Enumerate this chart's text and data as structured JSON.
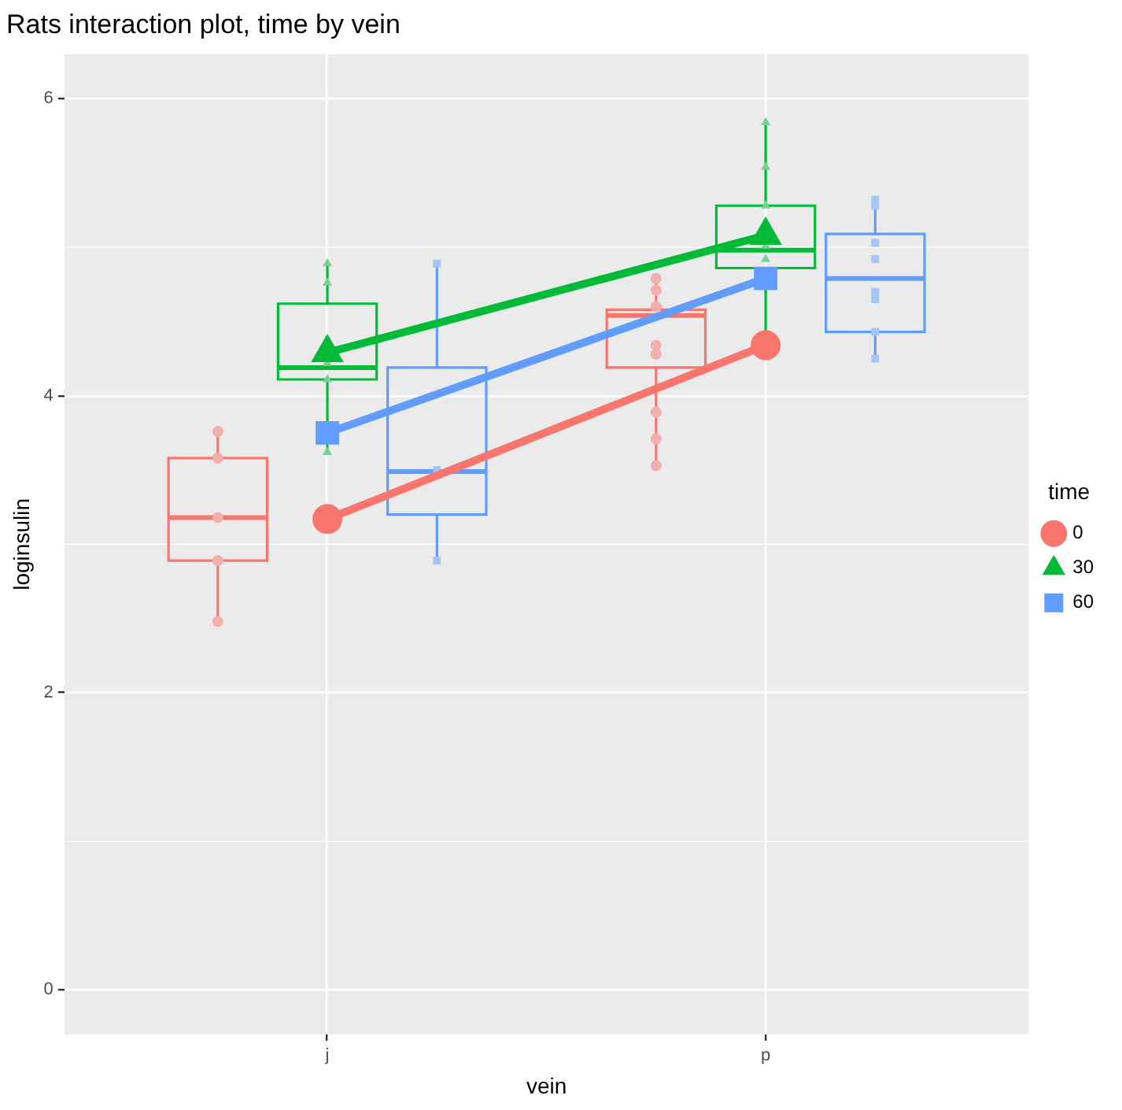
{
  "chart_data": {
    "type": "box",
    "title": "Rats interaction plot, time by vein",
    "xlabel": "vein",
    "ylabel": "loginsulin",
    "legend_title": "time",
    "categories": [
      "j",
      "p"
    ],
    "ylim": [
      -0.3,
      6.3
    ],
    "yticks": [
      0,
      2,
      4,
      6
    ],
    "grid": true,
    "legend": "right",
    "series": [
      {
        "type": "box",
        "color": "#f8766d",
        "boxes": [
          {
            "low": 2.48,
            "q1": 2.89,
            "median": 3.18,
            "q3": 3.58,
            "high": 3.76
          },
          {
            "low": 3.53,
            "q1": 4.19,
            "median": 4.54,
            "q3": 4.58,
            "high": 4.79
          }
        ]
      },
      {
        "type": "box",
        "color": "#00ba38",
        "boxes": [
          {
            "low": 3.62,
            "q1": 4.11,
            "median": 4.19,
            "q3": 4.62,
            "high": 4.89
          },
          {
            "low": 4.35,
            "q1": 4.86,
            "median": 4.98,
            "q3": 5.28,
            "high": 5.84
          }
        ]
      },
      {
        "type": "box",
        "color": "#619cff",
        "boxes": [
          {
            "low": 2.89,
            "q1": 3.2,
            "median": 3.49,
            "q3": 4.19,
            "high": 4.89
          },
          {
            "low": 4.25,
            "q1": 4.43,
            "median": 4.79,
            "q3": 5.09,
            "high": 5.32
          }
        ]
      },
      {
        "type": "scatter",
        "color": "#f2b0ac",
        "marker": "circle",
        "x": [
          "j",
          "j",
          "j",
          "j",
          "j",
          "p",
          "p",
          "p",
          "p",
          "p",
          "p",
          "p",
          "p"
        ],
        "values": [
          3.76,
          3.58,
          3.18,
          2.89,
          2.48,
          4.79,
          4.71,
          4.6,
          4.34,
          4.28,
          3.89,
          3.71,
          3.53
        ]
      },
      {
        "type": "scatter",
        "color": "#76d292",
        "marker": "triangle",
        "x": [
          "j",
          "j",
          "j",
          "j",
          "j",
          "p",
          "p",
          "p",
          "p",
          "p"
        ],
        "values": [
          4.89,
          4.76,
          4.22,
          4.11,
          3.62,
          5.84,
          5.54,
          5.28,
          5.01,
          4.92
        ]
      },
      {
        "type": "scatter",
        "color": "#a6c4f5",
        "marker": "square",
        "x": [
          "j",
          "j",
          "j",
          "p",
          "p",
          "p",
          "p",
          "p",
          "p",
          "p",
          "p"
        ],
        "values": [
          4.89,
          3.5,
          2.89,
          5.32,
          5.28,
          5.03,
          4.92,
          4.7,
          4.65,
          4.43,
          4.25
        ]
      },
      {
        "type": "line",
        "name": "0",
        "color": "#f8766d",
        "marker": "circle",
        "values": [
          3.17,
          4.34
        ]
      },
      {
        "type": "line",
        "name": "30",
        "color": "#00ba38",
        "marker": "triangle",
        "values": [
          4.29,
          5.08
        ]
      },
      {
        "type": "line",
        "name": "60",
        "color": "#619cff",
        "marker": "square",
        "values": [
          3.75,
          4.79
        ]
      }
    ]
  }
}
